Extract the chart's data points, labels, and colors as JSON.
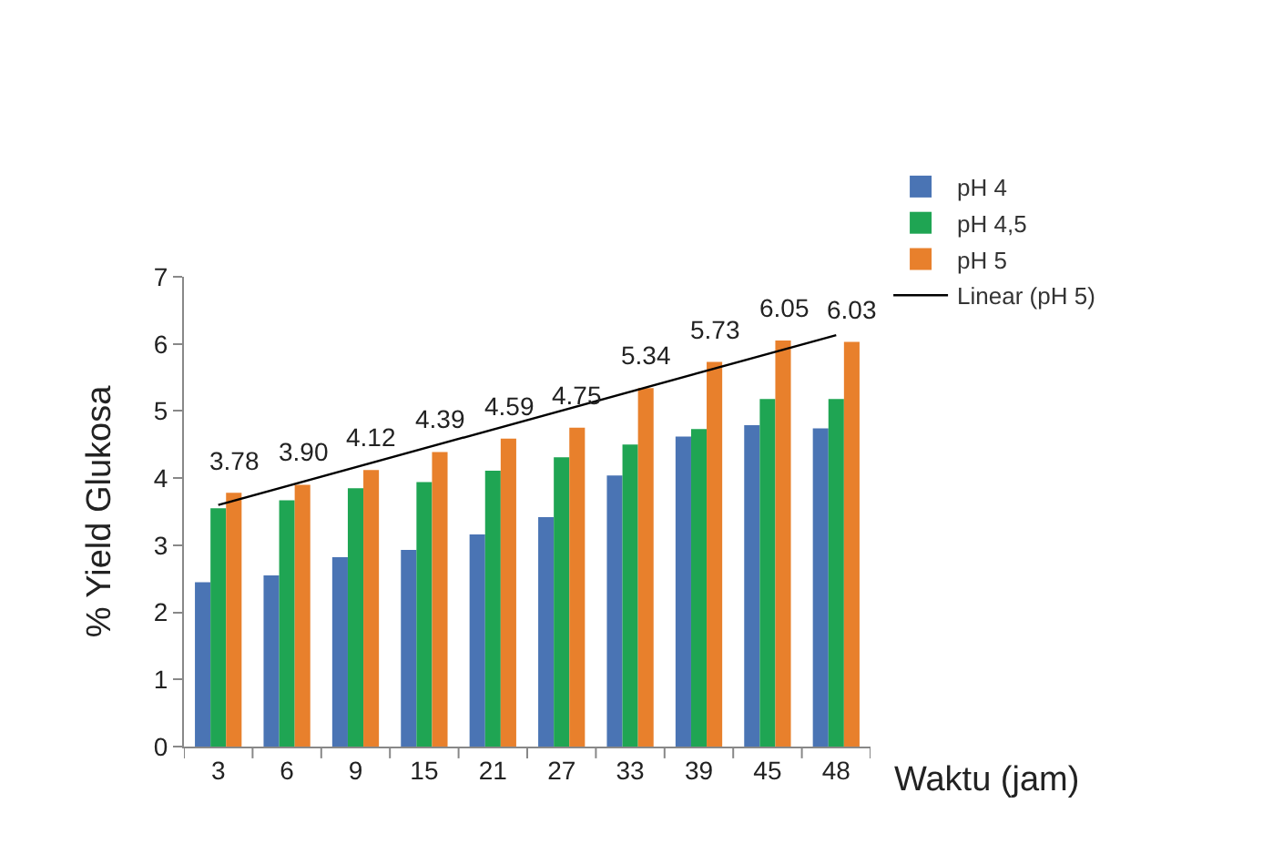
{
  "chart_data": {
    "type": "bar",
    "xlabel": "Waktu (jam)",
    "ylabel": "% Yield Glukosa",
    "categories": [
      "3",
      "6",
      "9",
      "15",
      "21",
      "27",
      "33",
      "39",
      "45",
      "48"
    ],
    "series": [
      {
        "name": "pH 4",
        "color": "#4a74b4",
        "values": [
          2.45,
          2.55,
          2.82,
          2.93,
          3.16,
          3.42,
          4.04,
          4.62,
          4.79,
          4.74
        ]
      },
      {
        "name": "pH 4,5",
        "color": "#1fa553",
        "values": [
          3.55,
          3.67,
          3.85,
          3.94,
          4.11,
          4.31,
          4.5,
          4.73,
          5.18,
          5.18
        ]
      },
      {
        "name": "pH 5",
        "color": "#e8802c",
        "values": [
          3.78,
          3.9,
          4.12,
          4.39,
          4.59,
          4.75,
          5.34,
          5.73,
          6.05,
          6.03
        ],
        "value_labels": [
          "3.78",
          "3.90",
          "4.12",
          "4.39",
          "4.59",
          "4.75",
          "5.34",
          "5.73",
          "6.05",
          "6.03"
        ]
      },
      {
        "name": "Linear (pH 5)",
        "type": "line",
        "color": "#000000",
        "x": [
          "3",
          "48"
        ],
        "values": [
          3.6,
          6.13
        ]
      }
    ],
    "ylim": [
      0,
      7
    ],
    "yticks": [
      0,
      1,
      2,
      3,
      4,
      5,
      6,
      7
    ],
    "grid": false,
    "legend": "right",
    "marker": "none",
    "line_style": "solid"
  }
}
